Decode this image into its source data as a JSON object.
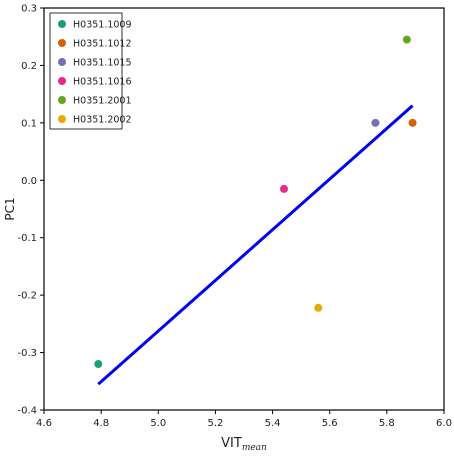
{
  "chart_data": {
    "type": "scatter",
    "xlabel": "VIT",
    "xlabel_subscript": "mean",
    "ylabel": "PC1",
    "xlim": [
      4.6,
      6.0
    ],
    "ylim": [
      -0.4,
      0.3
    ],
    "x_ticks": [
      "4.6",
      "4.8",
      "5.0",
      "5.2",
      "5.4",
      "5.6",
      "5.8",
      "6.0"
    ],
    "y_ticks": [
      "0.3",
      "0.2",
      "0.1",
      "0.0",
      "-0.1",
      "-0.2",
      "-0.3",
      "-0.4"
    ],
    "grid": false,
    "legend_position": "top-left",
    "series": [
      {
        "name": "H0351.1009",
        "color": "#1b9e77",
        "x": 4.79,
        "y": -0.32
      },
      {
        "name": "H0351.1012",
        "color": "#d95f02",
        "x": 5.89,
        "y": 0.1
      },
      {
        "name": "H0351.1015",
        "color": "#7570b3",
        "x": 5.76,
        "y": 0.1
      },
      {
        "name": "H0351.1016",
        "color": "#e7298a",
        "x": 5.44,
        "y": -0.015
      },
      {
        "name": "H0351.2001",
        "color": "#66a61e",
        "x": 5.87,
        "y": 0.245
      },
      {
        "name": "H0351.2002",
        "color": "#e6ab02",
        "x": 5.56,
        "y": -0.222
      }
    ],
    "fit_line": {
      "color": "#0000ee",
      "x": [
        4.79,
        5.89
      ],
      "y": [
        -0.355,
        0.13
      ]
    }
  }
}
